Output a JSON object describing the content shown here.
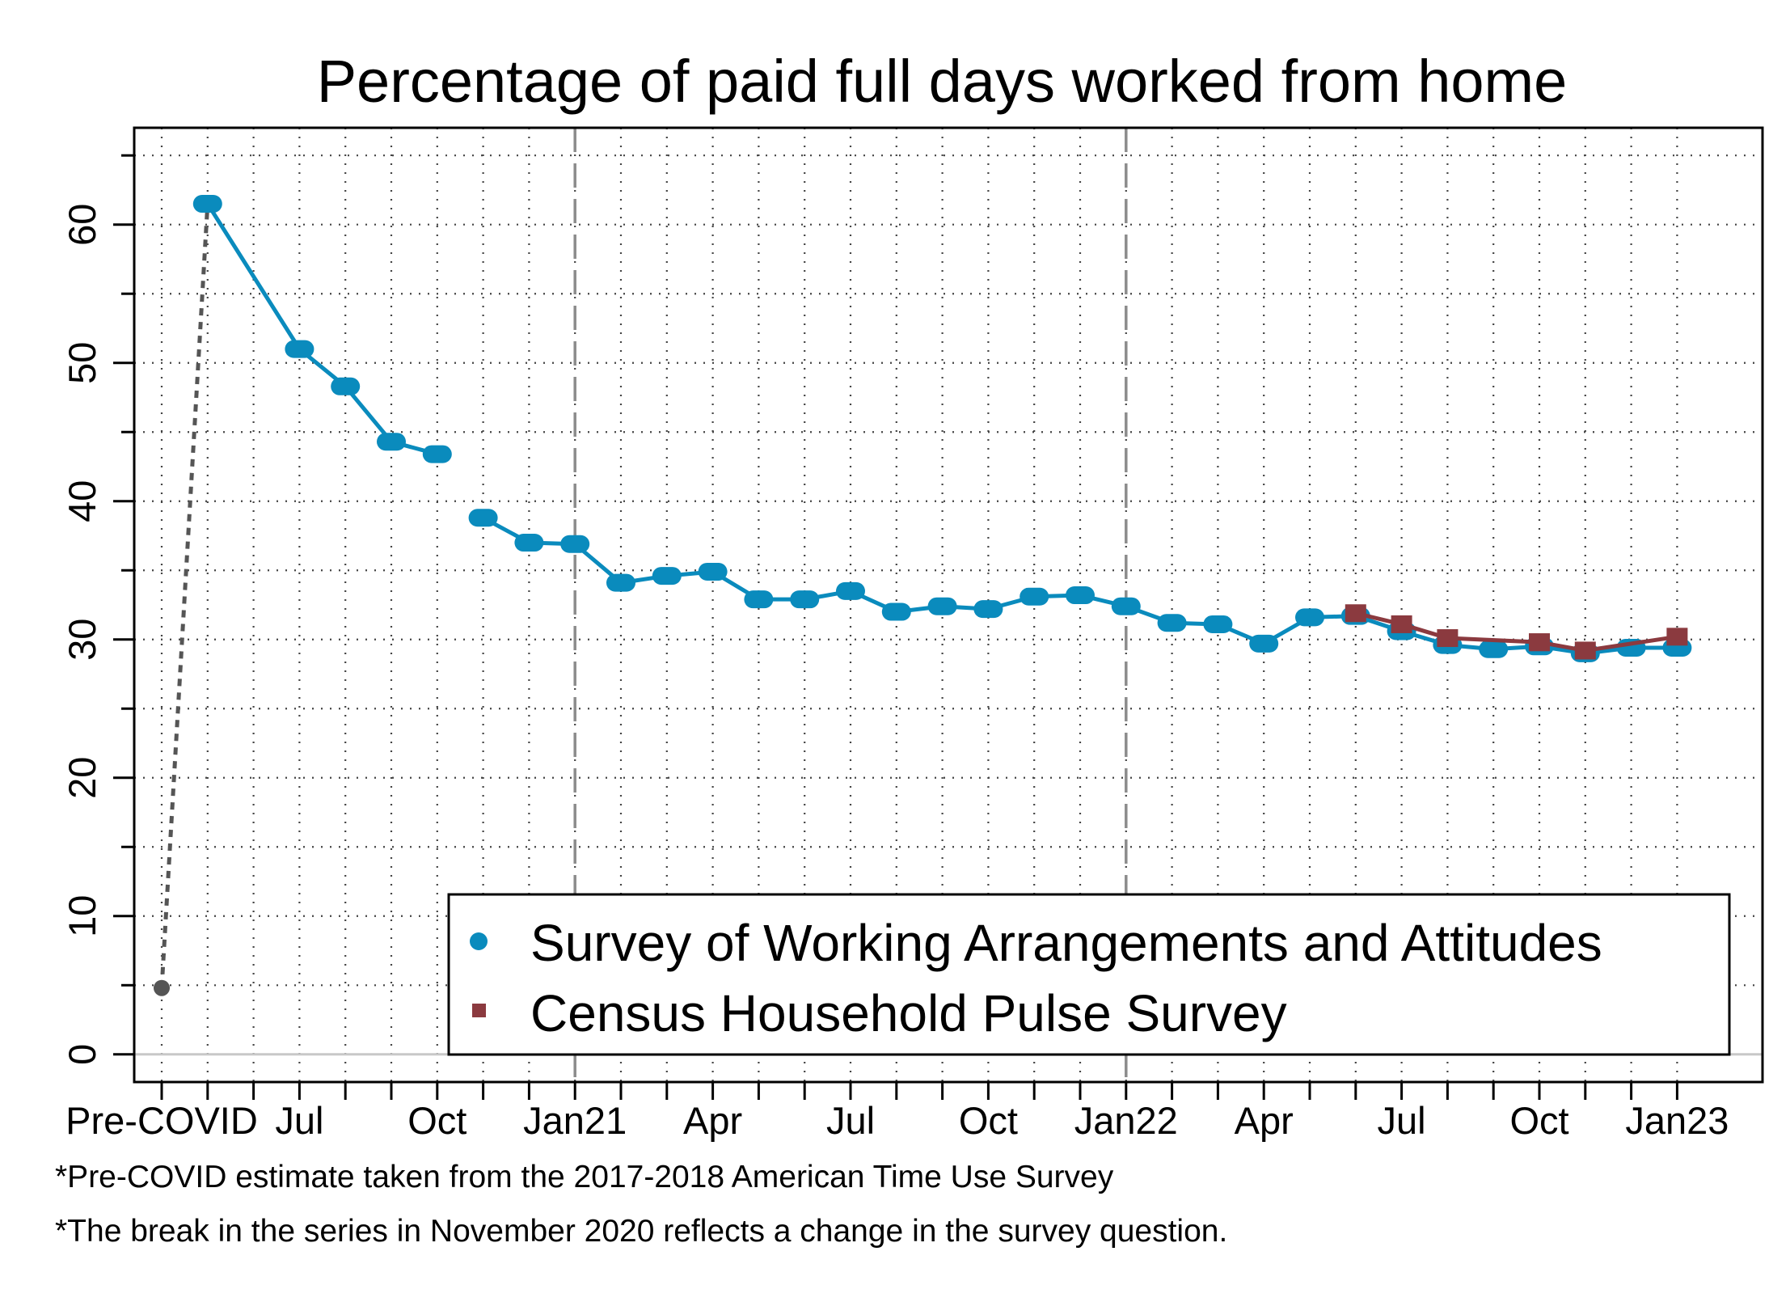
{
  "chart_data": {
    "type": "line",
    "title": "Percentage of paid full days worked from home",
    "xlabel": "",
    "ylabel": "",
    "ylim": [
      -2,
      67
    ],
    "y_ticks": [
      0,
      10,
      20,
      30,
      40,
      50,
      60
    ],
    "x_categories": [
      "Pre-COVID",
      "May 2020",
      "Jun 2020",
      "Jul 2020",
      "Aug 2020",
      "Sep 2020",
      "Oct 2020",
      "Nov 2020",
      "Dec 2020",
      "Jan 2021",
      "Feb 2021",
      "Mar 2021",
      "Apr 2021",
      "May 2021",
      "Jun 2021",
      "Jul 2021",
      "Aug 2021",
      "Sep 2021",
      "Oct 2021",
      "Nov 2021",
      "Dec 2021",
      "Jan 2022",
      "Feb 2022",
      "Mar 2022",
      "Apr 2022",
      "May 2022",
      "Jun 2022",
      "Jul 2022",
      "Aug 2022",
      "Sep 2022",
      "Oct 2022",
      "Nov 2022",
      "Dec 2022",
      "Jan 2023"
    ],
    "x_tick_labels": [
      "Pre-COVID",
      "Jul",
      "Oct",
      "Jan21",
      "Apr",
      "Jul",
      "Oct",
      "Jan22",
      "Apr",
      "Jul",
      "Oct",
      "Jan23"
    ],
    "vertical_reference_lines": [
      "Jan 2021",
      "Jan 2022"
    ],
    "grid": true,
    "legend_position": "bottom-right",
    "series": [
      {
        "name": "Survey of Working Arrangements and Attitudes",
        "color": "#0a8bbd",
        "marker": "circle",
        "points": [
          {
            "x": "May 2020",
            "y": 61.5
          },
          {
            "x": "Jul 2020",
            "y": 51.0
          },
          {
            "x": "Aug 2020",
            "y": 48.3
          },
          {
            "x": "Sep 2020",
            "y": 44.3
          },
          {
            "x": "Oct 2020",
            "y": 43.4
          },
          {
            "x": "Nov 2020",
            "y": 38.8
          },
          {
            "x": "Dec 2020",
            "y": 37.0
          },
          {
            "x": "Jan 2021",
            "y": 36.9
          },
          {
            "x": "Feb 2021",
            "y": 34.1
          },
          {
            "x": "Mar 2021",
            "y": 34.6
          },
          {
            "x": "Apr 2021",
            "y": 34.9
          },
          {
            "x": "May 2021",
            "y": 32.9
          },
          {
            "x": "Jun 2021",
            "y": 32.9
          },
          {
            "x": "Jul 2021",
            "y": 33.5
          },
          {
            "x": "Aug 2021",
            "y": 32.0
          },
          {
            "x": "Sep 2021",
            "y": 32.4
          },
          {
            "x": "Oct 2021",
            "y": 32.2
          },
          {
            "x": "Nov 2021",
            "y": 33.1
          },
          {
            "x": "Dec 2021",
            "y": 33.2
          },
          {
            "x": "Jan 2022",
            "y": 32.4
          },
          {
            "x": "Feb 2022",
            "y": 31.2
          },
          {
            "x": "Mar 2022",
            "y": 31.1
          },
          {
            "x": "Apr 2022",
            "y": 29.7
          },
          {
            "x": "May 2022",
            "y": 31.6
          },
          {
            "x": "Jun 2022",
            "y": 31.7
          },
          {
            "x": "Jul 2022",
            "y": 30.6
          },
          {
            "x": "Aug 2022",
            "y": 29.6
          },
          {
            "x": "Sep 2022",
            "y": 29.3
          },
          {
            "x": "Oct 2022",
            "y": 29.5
          },
          {
            "x": "Nov 2022",
            "y": 29.0
          },
          {
            "x": "Dec 2022",
            "y": 29.4
          },
          {
            "x": "Jan 2023",
            "y": 29.4
          }
        ]
      },
      {
        "name": "Census Household Pulse Survey",
        "color": "#8b3a3f",
        "marker": "square",
        "points": [
          {
            "x": "Jun 2022",
            "y": 31.9
          },
          {
            "x": "Jul 2022",
            "y": 31.1
          },
          {
            "x": "Aug 2022",
            "y": 30.1
          },
          {
            "x": "Oct 2022",
            "y": 29.8
          },
          {
            "x": "Oct 2022",
            "y": 29.8
          },
          {
            "x": "Nov 2022",
            "y": 29.2
          },
          {
            "x": "Jan 2023",
            "y": 30.2
          }
        ]
      },
      {
        "name": "",
        "color": "#555555",
        "marker": "circle",
        "points": [
          {
            "x": "Pre-COVID",
            "y": 4.8
          },
          {
            "x": "May 2020",
            "y": 61.5
          }
        ]
      }
    ]
  },
  "footnotes": [
    "*Pre-COVID estimate taken from the 2017-2018 American Time Use Survey",
    "*The break in the series in November 2020 reflects a change in the survey question."
  ]
}
